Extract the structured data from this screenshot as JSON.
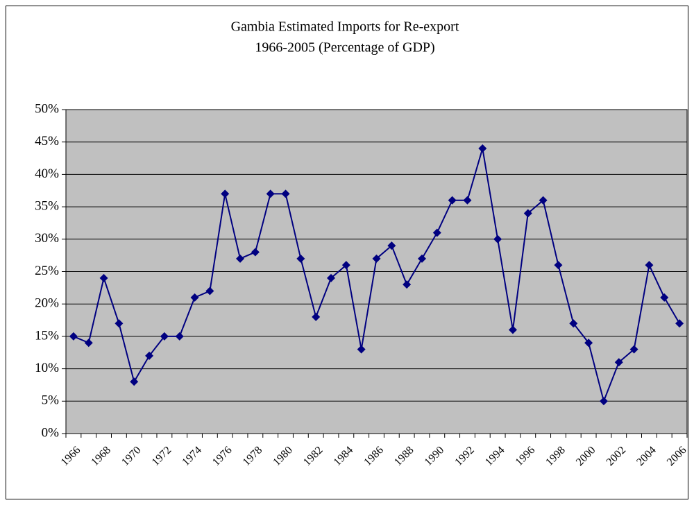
{
  "chart_data": {
    "type": "line",
    "title": "Gambia Estimated Imports for Re-export",
    "subtitle": "1966-2005 (Percentage of GDP)",
    "categories": [
      "1966",
      null,
      "1968",
      null,
      "1970",
      null,
      "1972",
      null,
      "1974",
      null,
      "1976",
      null,
      "1978",
      null,
      "1980",
      null,
      "1982",
      null,
      "1984",
      null,
      "1986",
      null,
      "1988",
      null,
      "1990",
      null,
      "1992",
      null,
      "1994",
      null,
      "1996",
      null,
      "1998",
      null,
      "2000",
      null,
      "2002",
      null,
      "2004",
      null,
      "2006"
    ],
    "series": [
      {
        "name": "Imports for Re-export",
        "color": "#000080",
        "values": [
          15,
          14,
          24,
          17,
          8,
          12,
          15,
          15,
          21,
          22,
          37,
          27,
          28,
          37,
          37,
          27,
          18,
          24,
          26,
          13,
          27,
          29,
          23,
          27,
          31,
          36,
          36,
          44,
          30,
          16,
          34,
          36,
          26,
          17,
          14,
          5,
          11,
          13,
          26,
          21,
          17
        ]
      }
    ],
    "ylim": [
      0,
      50
    ],
    "yticks": [
      {
        "value": 0,
        "label": "0%"
      },
      {
        "value": 5,
        "label": "5%"
      },
      {
        "value": 10,
        "label": "10%"
      },
      {
        "value": 15,
        "label": "15%"
      },
      {
        "value": 20,
        "label": "20%"
      },
      {
        "value": 25,
        "label": "25%"
      },
      {
        "value": 30,
        "label": "30%"
      },
      {
        "value": 35,
        "label": "35%"
      },
      {
        "value": 40,
        "label": "40%"
      },
      {
        "value": 45,
        "label": "45%"
      },
      {
        "value": 50,
        "label": "50%"
      }
    ],
    "grid": true,
    "plot_background": "#c0c0c0"
  }
}
